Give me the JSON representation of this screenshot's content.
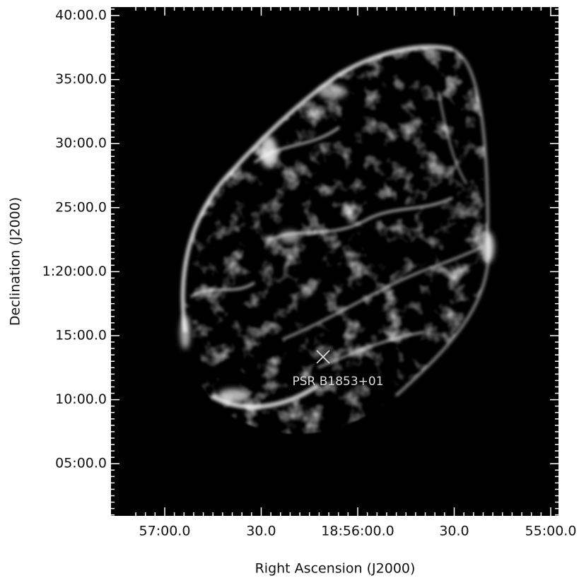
{
  "figure": {
    "x_axis_label": "Right Ascension (J2000)",
    "y_axis_label": "Declination (J2000)",
    "x_tick_labels": [
      "57:00.0",
      "30.0",
      "18:56:00.0",
      "30.0",
      "55:00.0"
    ],
    "y_tick_labels": [
      "40:00.0",
      "35:00.0",
      "30:00.0",
      "25:00.0",
      "1:20:00.0",
      "15:00.0",
      "10:00.0",
      "05:00.0"
    ],
    "annotation": "PSR B1853+01"
  }
}
